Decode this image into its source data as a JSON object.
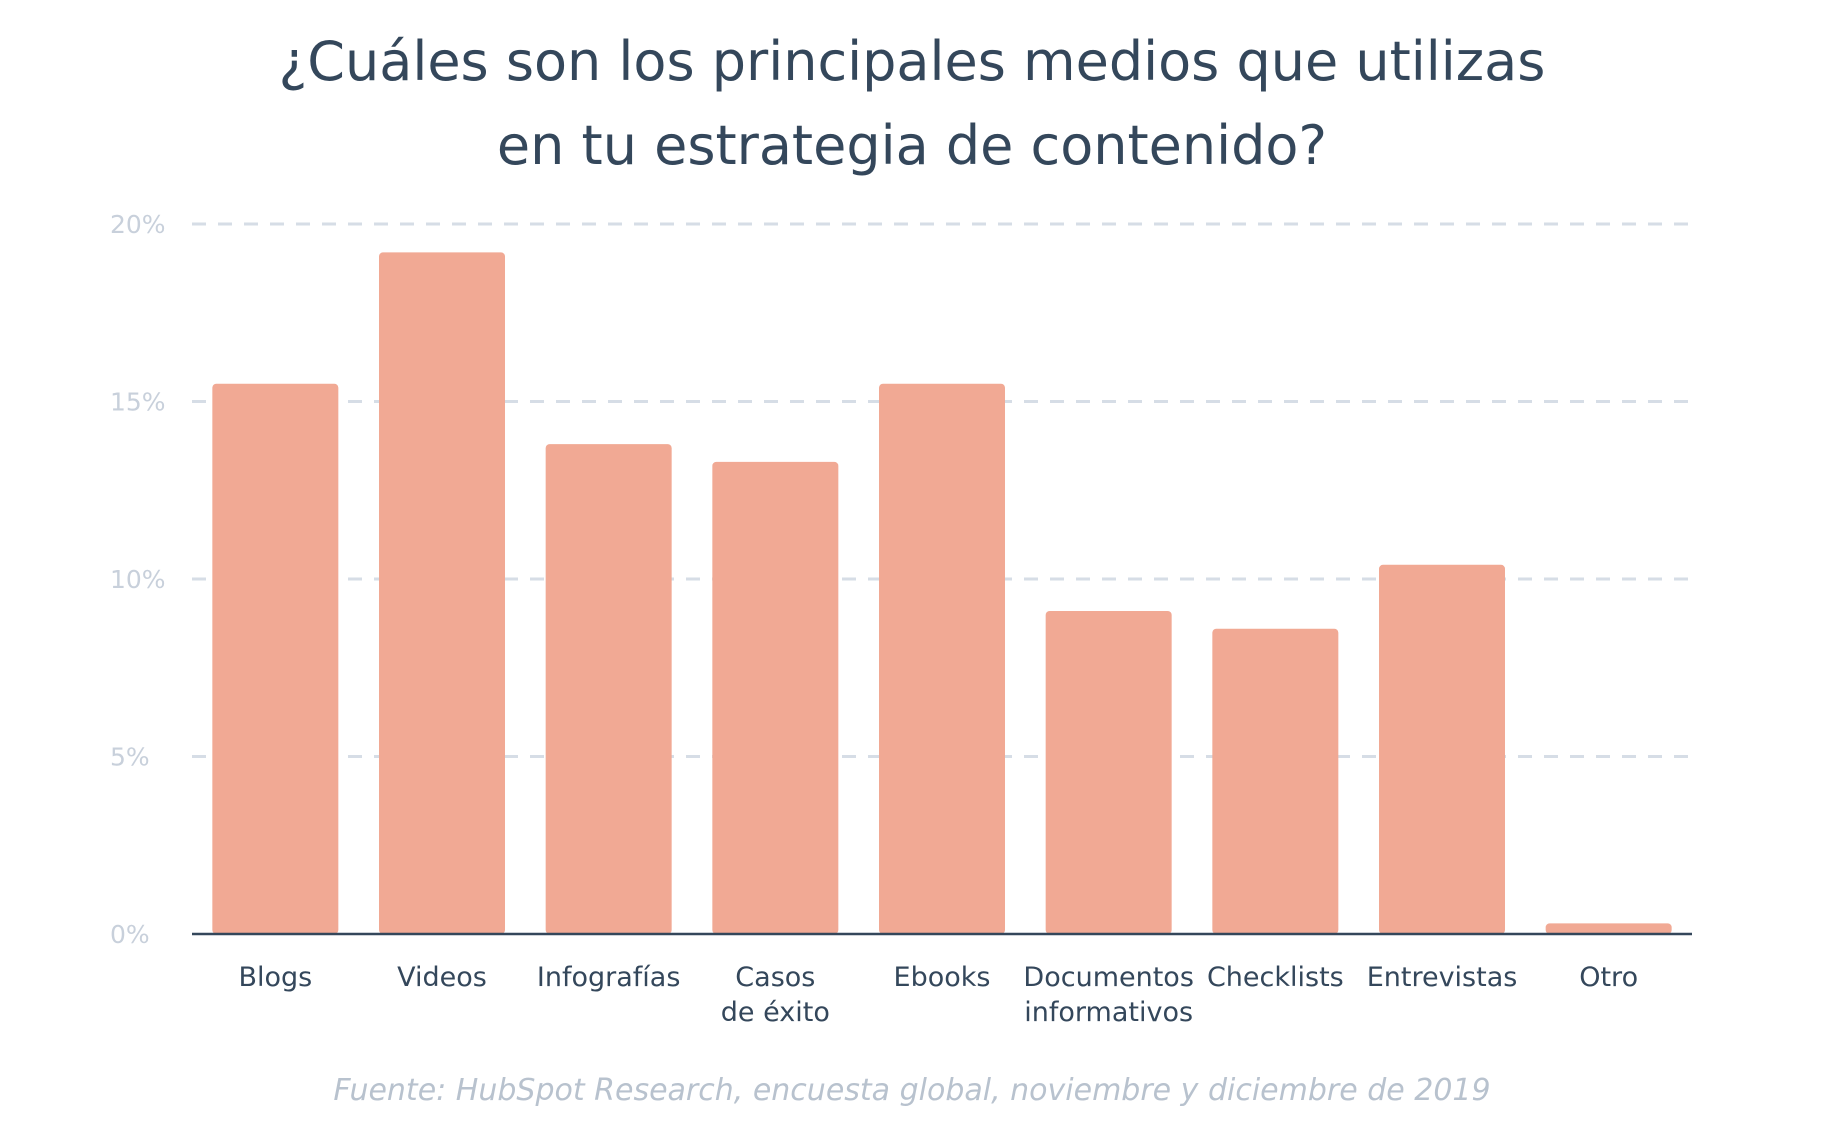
{
  "title_lines": [
    "¿Cuáles son los principales medios que utilizas",
    "en tu estrategia de contenido?"
  ],
  "source": "Fuente: HubSpot Research, encuesta global, noviembre y diciembre de 2019",
  "colors": {
    "bar": "#f1a994",
    "axis": "#34475b",
    "grid": "#d6dde6",
    "tick_text": "#c8d0db",
    "title": "#34475b",
    "source": "#b8c2ce"
  },
  "chart_data": {
    "type": "bar",
    "title": "¿Cuáles son los principales medios que utilizas en tu estrategia de contenido?",
    "categories": [
      [
        "Blogs"
      ],
      [
        "Videos"
      ],
      [
        "Infografías"
      ],
      [
        "Casos",
        "de éxito"
      ],
      [
        "Ebooks"
      ],
      [
        "Documentos",
        "informativos"
      ],
      [
        "Checklists"
      ],
      [
        "Entrevistas"
      ],
      [
        "Otro"
      ]
    ],
    "values": [
      15.5,
      19.2,
      13.8,
      13.3,
      15.5,
      9.1,
      8.6,
      10.4,
      0.3
    ],
    "ylim": [
      0,
      20
    ],
    "yticks": [
      0,
      5,
      10,
      15,
      20
    ],
    "ytick_labels": [
      "0%",
      "5%",
      "10%",
      "15%",
      "20%"
    ],
    "xlabel": "",
    "ylabel": "",
    "grid": true,
    "grid_style": "dashed"
  }
}
